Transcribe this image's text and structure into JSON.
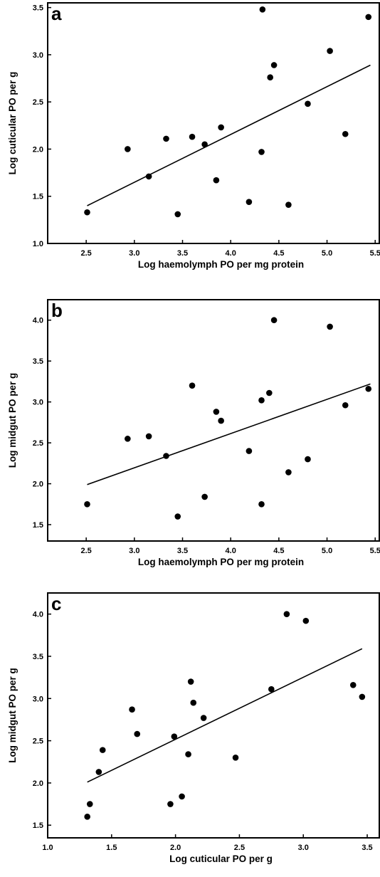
{
  "chart_data": [
    {
      "type": "scatter",
      "panel_label": "a",
      "xlabel": "Log haemolymph PO per mg protein",
      "ylabel": "Log cuticular PO per g",
      "xlim": [
        2.1,
        5.55
      ],
      "ylim": [
        1.0,
        3.55
      ],
      "xticks": [
        "2.5",
        "3.0",
        "3.5",
        "4.0",
        "4.5",
        "5.0",
        "5.5"
      ],
      "yticks": [
        "1.0",
        "1.5",
        "2.0",
        "2.5",
        "3.0",
        "3.5"
      ],
      "grid": false,
      "points": [
        {
          "x": 2.51,
          "y": 1.33
        },
        {
          "x": 2.93,
          "y": 2.0
        },
        {
          "x": 3.15,
          "y": 1.71
        },
        {
          "x": 3.33,
          "y": 2.11
        },
        {
          "x": 3.45,
          "y": 1.31
        },
        {
          "x": 3.6,
          "y": 2.13
        },
        {
          "x": 3.73,
          "y": 2.05
        },
        {
          "x": 3.85,
          "y": 1.67
        },
        {
          "x": 3.9,
          "y": 2.23
        },
        {
          "x": 4.19,
          "y": 1.44
        },
        {
          "x": 4.32,
          "y": 1.97
        },
        {
          "x": 4.33,
          "y": 3.48
        },
        {
          "x": 4.41,
          "y": 2.76
        },
        {
          "x": 4.45,
          "y": 2.89
        },
        {
          "x": 4.6,
          "y": 1.41
        },
        {
          "x": 4.8,
          "y": 2.48
        },
        {
          "x": 5.03,
          "y": 3.04
        },
        {
          "x": 5.19,
          "y": 2.16
        },
        {
          "x": 5.43,
          "y": 3.4
        }
      ],
      "fit_line": {
        "x": [
          2.51,
          5.45
        ],
        "y": [
          1.4,
          2.89
        ]
      }
    },
    {
      "type": "scatter",
      "panel_label": "b",
      "xlabel": "Log haemolymph PO per mg protein",
      "ylabel": "Log midgut PO per g",
      "xlim": [
        2.1,
        5.55
      ],
      "ylim": [
        1.3,
        4.25
      ],
      "xticks": [
        "2.5",
        "3.0",
        "3.5",
        "4.0",
        "4.5",
        "5.0",
        "5.5"
      ],
      "yticks": [
        "1.5",
        "2.0",
        "2.5",
        "3.0",
        "3.5",
        "4.0"
      ],
      "grid": false,
      "points": [
        {
          "x": 2.51,
          "y": 1.75
        },
        {
          "x": 2.93,
          "y": 2.55
        },
        {
          "x": 3.15,
          "y": 2.58
        },
        {
          "x": 3.33,
          "y": 2.34
        },
        {
          "x": 3.45,
          "y": 1.6
        },
        {
          "x": 3.6,
          "y": 3.2
        },
        {
          "x": 3.73,
          "y": 1.84
        },
        {
          "x": 3.85,
          "y": 2.88
        },
        {
          "x": 3.9,
          "y": 2.77
        },
        {
          "x": 4.19,
          "y": 2.4
        },
        {
          "x": 4.32,
          "y": 1.75
        },
        {
          "x": 4.32,
          "y": 3.02
        },
        {
          "x": 4.4,
          "y": 3.11
        },
        {
          "x": 4.45,
          "y": 4.0
        },
        {
          "x": 4.6,
          "y": 2.14
        },
        {
          "x": 4.8,
          "y": 2.3
        },
        {
          "x": 5.03,
          "y": 3.92
        },
        {
          "x": 5.19,
          "y": 2.96
        },
        {
          "x": 5.43,
          "y": 3.16
        }
      ],
      "fit_line": {
        "x": [
          2.51,
          5.45
        ],
        "y": [
          1.99,
          3.22
        ]
      }
    },
    {
      "type": "scatter",
      "panel_label": "c",
      "xlabel": "Log cuticular PO per g",
      "ylabel": "Log midgut PO per g",
      "xlim": [
        1.0,
        3.6
      ],
      "ylim": [
        1.35,
        4.25
      ],
      "xticks": [
        "1.0",
        "1.5",
        "2.0",
        "2.5",
        "3.0",
        "3.5"
      ],
      "yticks": [
        "1.5",
        "2.0",
        "2.5",
        "3.0",
        "3.5",
        "4.0"
      ],
      "grid": false,
      "points": [
        {
          "x": 1.31,
          "y": 1.6
        },
        {
          "x": 1.33,
          "y": 1.75
        },
        {
          "x": 1.4,
          "y": 2.13
        },
        {
          "x": 1.43,
          "y": 2.39
        },
        {
          "x": 1.66,
          "y": 2.87
        },
        {
          "x": 1.7,
          "y": 2.58
        },
        {
          "x": 1.96,
          "y": 1.75
        },
        {
          "x": 1.99,
          "y": 2.55
        },
        {
          "x": 2.05,
          "y": 1.84
        },
        {
          "x": 2.1,
          "y": 2.34
        },
        {
          "x": 2.12,
          "y": 3.2
        },
        {
          "x": 2.14,
          "y": 2.95
        },
        {
          "x": 2.22,
          "y": 2.77
        },
        {
          "x": 2.47,
          "y": 2.3
        },
        {
          "x": 2.75,
          "y": 3.11
        },
        {
          "x": 2.87,
          "y": 4.0
        },
        {
          "x": 3.02,
          "y": 3.92
        },
        {
          "x": 3.39,
          "y": 3.16
        },
        {
          "x": 3.46,
          "y": 3.02
        }
      ],
      "fit_line": {
        "x": [
          1.31,
          3.46
        ],
        "y": [
          2.01,
          3.59
        ]
      }
    }
  ]
}
